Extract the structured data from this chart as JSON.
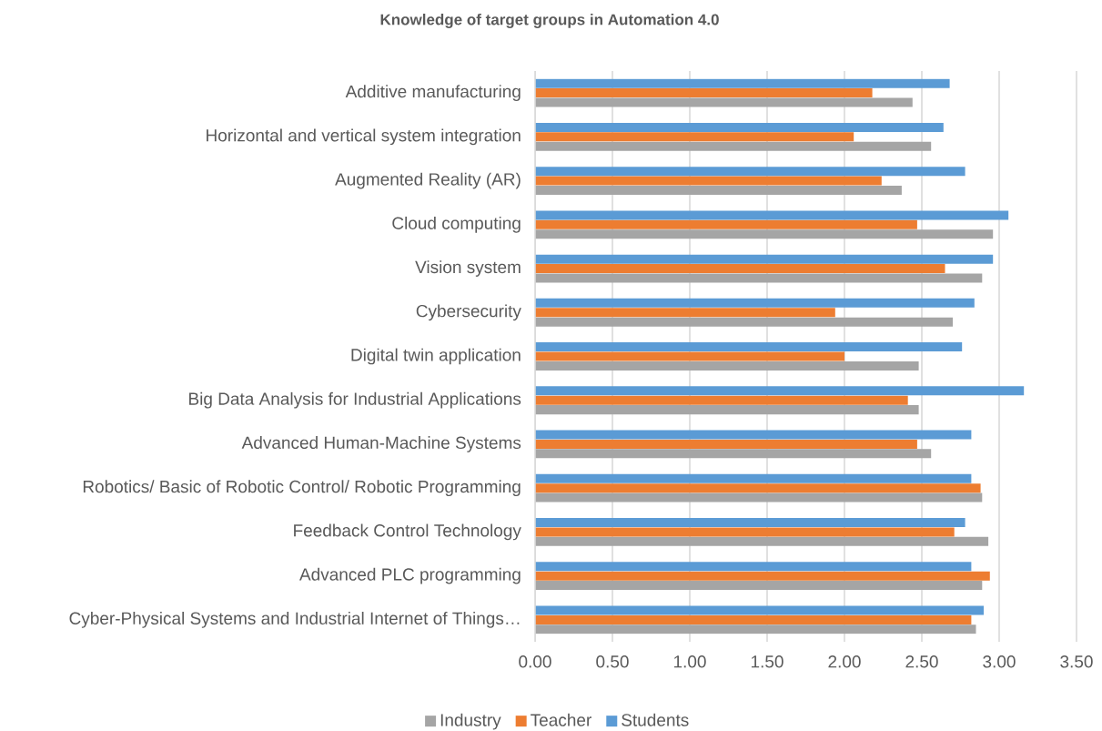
{
  "chart_data": {
    "type": "bar",
    "orientation": "horizontal",
    "title": "Knowledge of target groups in Automation 4.0",
    "categories": [
      "Additive manufacturing",
      "Horizontal and vertical system integration",
      "Augmented Reality (AR)",
      "Cloud computing",
      "Vision system",
      "Cybersecurity",
      "Digital twin application",
      "Big Data Analysis for Industrial Applications",
      "Advanced Human-Machine Systems",
      "Robotics/ Basic of Robotic Control/ Robotic Programming",
      "Feedback Control Technology",
      "Advanced PLC programming",
      "Cyber-Physical Systems and Industrial Internet of Things…"
    ],
    "series": [
      {
        "name": "Industry",
        "color": "#a5a5a5",
        "values": [
          2.44,
          2.56,
          2.37,
          2.96,
          2.89,
          2.7,
          2.48,
          2.48,
          2.56,
          2.89,
          2.93,
          2.89,
          2.85
        ]
      },
      {
        "name": "Teacher",
        "color": "#ed7d31",
        "values": [
          2.18,
          2.06,
          2.24,
          2.47,
          2.65,
          1.94,
          2.0,
          2.41,
          2.47,
          2.88,
          2.71,
          2.94,
          2.82
        ]
      },
      {
        "name": "Students",
        "color": "#5b9bd5",
        "values": [
          2.68,
          2.64,
          2.78,
          3.06,
          2.96,
          2.84,
          2.76,
          3.16,
          2.82,
          2.82,
          2.78,
          2.82,
          2.9
        ]
      }
    ],
    "xlim": [
      0,
      3.5
    ],
    "xticks": [
      {
        "value": 0,
        "label": "0.00"
      },
      {
        "value": 0.5,
        "label": "0.50"
      },
      {
        "value": 1,
        "label": "1.00"
      },
      {
        "value": 1.5,
        "label": "1.50"
      },
      {
        "value": 2,
        "label": "2.00"
      },
      {
        "value": 2.5,
        "label": "2.50"
      },
      {
        "value": 3,
        "label": "3.00"
      },
      {
        "value": 3.5,
        "label": "3.50"
      }
    ],
    "grid": "x",
    "legend": "bottom"
  }
}
